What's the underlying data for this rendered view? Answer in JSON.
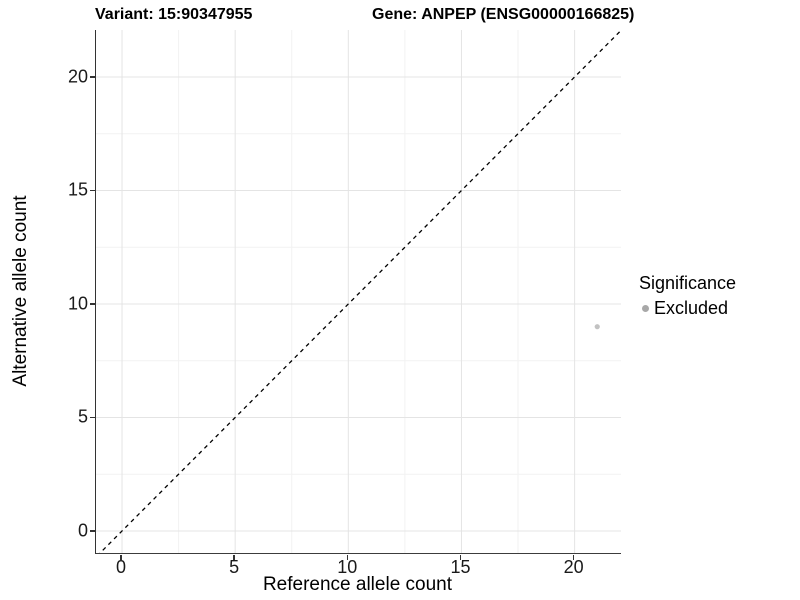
{
  "titles": {
    "variant": "Variant: 15:90347955",
    "gene": "Gene: ANPEP (ENSG00000166825)"
  },
  "axes": {
    "x_label": "Reference allele count",
    "y_label": "Alternative allele count"
  },
  "legend": {
    "title": "Significance",
    "items": [
      {
        "label": "Excluded",
        "color": "#a8a8a8"
      }
    ]
  },
  "chart_data": {
    "type": "scatter",
    "title": "Variant: 15:90347955 — Gene: ANPEP (ENSG00000166825)",
    "xlabel": "Reference allele count",
    "ylabel": "Alternative allele count",
    "xlim": [
      -1.15,
      22.05
    ],
    "ylim": [
      -0.97,
      22.07
    ],
    "x_ticks": [
      0,
      5,
      10,
      15,
      20
    ],
    "y_ticks": [
      0,
      5,
      10,
      15,
      20
    ],
    "series": [
      {
        "name": "Excluded",
        "color": "#c2c2c2",
        "points": [
          {
            "x": 21,
            "y": 9
          }
        ]
      }
    ],
    "reference_line": {
      "type": "identity",
      "style": "dashed",
      "color": "#000000",
      "dash": "4 4"
    },
    "grid": {
      "major_color": "#e4e4e4",
      "minor_color": "#f2f2f2",
      "minor_step": 2.5
    },
    "legend_position": "right",
    "background": "#ffffff"
  }
}
